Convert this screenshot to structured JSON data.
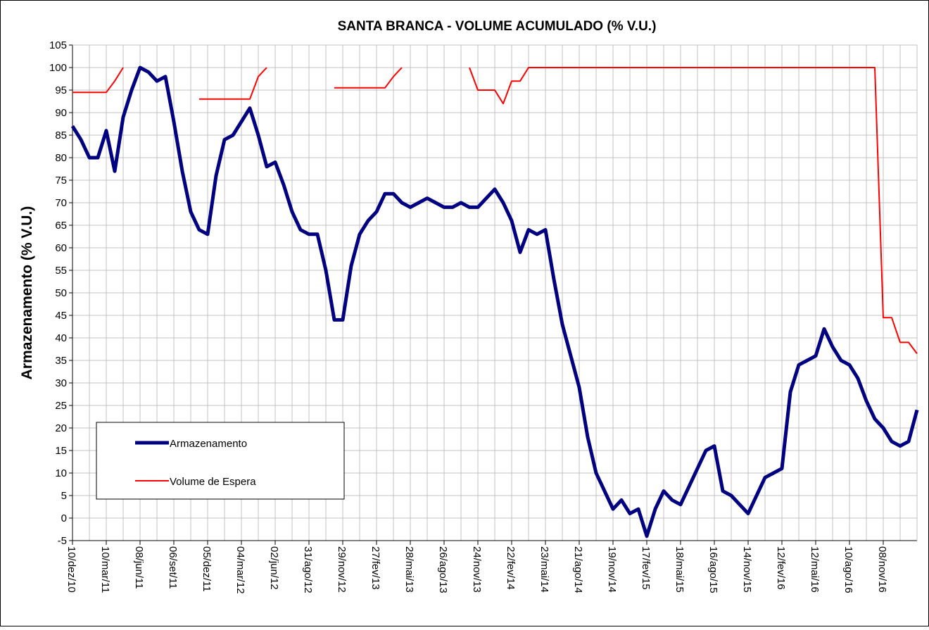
{
  "chart_data": {
    "type": "line",
    "title": "SANTA BRANCA - VOLUME ACUMULADO (% V.U.)",
    "y_label": "Armazenamento (% V.U.)",
    "categories": [
      "10/dez/10",
      null,
      null,
      null,
      "10/mar/11",
      null,
      null,
      null,
      "08/jun/11",
      null,
      null,
      null,
      "06/set/11",
      null,
      null,
      null,
      "05/dez/11",
      null,
      null,
      null,
      "04/mar/12",
      null,
      null,
      null,
      "02/jun/12",
      null,
      null,
      null,
      "31/ago/12",
      null,
      null,
      null,
      "29/nov/12",
      null,
      null,
      null,
      "27/fev/13",
      null,
      null,
      null,
      "28/mai/13",
      null,
      null,
      null,
      "26/ago/13",
      null,
      null,
      null,
      "24/nov/13",
      null,
      null,
      null,
      "22/fev/14",
      null,
      null,
      null,
      "23/mai/14",
      null,
      null,
      null,
      "21/ago/14",
      null,
      null,
      null,
      "19/nov/14",
      null,
      null,
      null,
      "17/fev/15",
      null,
      null,
      null,
      "18/mai/15",
      null,
      null,
      null,
      "16/ago/15",
      null,
      null,
      null,
      "14/nov/15",
      null,
      null,
      null,
      "12/fev/16",
      null,
      null,
      null,
      "12/mai/16",
      null,
      null,
      null,
      "10/ago/16",
      null,
      null,
      null,
      "08/nov/16",
      null,
      null,
      null,
      null
    ],
    "series": [
      {
        "name": "Armazenamento",
        "color": "#000080",
        "width": 5,
        "values": [
          87,
          84,
          80,
          80,
          86,
          77,
          89,
          95,
          100,
          99,
          97,
          98,
          88,
          77,
          68,
          64,
          63,
          76,
          84,
          85,
          88,
          91,
          85,
          78,
          79,
          74,
          68,
          64,
          63,
          63,
          55,
          44,
          44,
          56,
          63,
          66,
          68,
          72,
          72,
          70,
          69,
          70,
          71,
          70,
          69,
          69,
          70,
          69,
          69,
          71,
          73,
          70,
          66,
          59,
          64,
          63,
          64,
          53,
          43,
          36,
          29,
          18,
          10,
          6,
          2,
          4,
          1,
          2,
          -4,
          2,
          6,
          4,
          3,
          7,
          11,
          15,
          16,
          6,
          5,
          3,
          1,
          5,
          9,
          10,
          11,
          28,
          34,
          35,
          36,
          42,
          38,
          35,
          34,
          31,
          26,
          22,
          20,
          17,
          16,
          17,
          24
        ]
      },
      {
        "name": "Volume de Espera",
        "color": "#ff0000",
        "width": 2,
        "values": [
          94.5,
          94.5,
          94.5,
          94.5,
          94.5,
          97,
          100,
          null,
          null,
          null,
          null,
          null,
          null,
          null,
          null,
          93,
          93,
          93,
          93,
          93,
          93,
          93,
          98,
          100,
          null,
          null,
          null,
          null,
          null,
          null,
          null,
          95.5,
          95.5,
          95.5,
          95.5,
          95.5,
          95.5,
          95.5,
          98,
          100,
          null,
          null,
          null,
          null,
          null,
          null,
          null,
          100,
          95,
          95,
          95,
          92,
          97,
          97,
          100,
          100,
          100,
          100,
          100,
          100,
          100,
          100,
          100,
          100,
          100,
          100,
          100,
          100,
          100,
          100,
          100,
          100,
          100,
          100,
          100,
          100,
          100,
          100,
          100,
          100,
          100,
          100,
          100,
          100,
          100,
          100,
          100,
          100,
          100,
          100,
          100,
          100,
          100,
          100,
          100,
          100,
          44.5,
          44.5,
          39,
          39,
          36.5
        ]
      }
    ],
    "ylim": [
      -5,
      105
    ],
    "yticks": [
      -5,
      0,
      5,
      10,
      15,
      20,
      25,
      30,
      35,
      40,
      45,
      50,
      55,
      60,
      65,
      70,
      75,
      80,
      85,
      90,
      95,
      100,
      105
    ],
    "grid": true
  }
}
